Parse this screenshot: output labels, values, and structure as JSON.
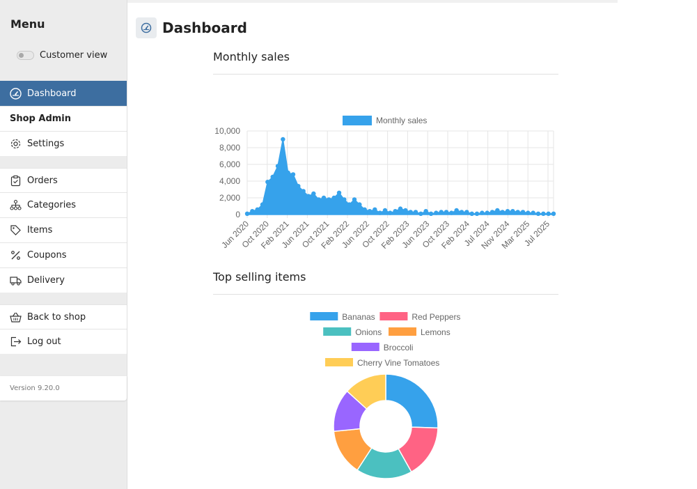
{
  "sidebar": {
    "menu_title": "Menu",
    "customer_view_label": "Customer view",
    "items": [
      {
        "label": "Dashboard",
        "icon": "dashboard-gauge-icon"
      },
      {
        "label": "Shop Admin"
      },
      {
        "label": "Settings",
        "icon": "gear-icon"
      },
      {
        "label": "Orders",
        "icon": "clipboard-check-icon"
      },
      {
        "label": "Categories",
        "icon": "hierarchy-icon"
      },
      {
        "label": "Items",
        "icon": "tag-icon"
      },
      {
        "label": "Coupons",
        "icon": "percent-icon"
      },
      {
        "label": "Delivery",
        "icon": "truck-icon"
      },
      {
        "label": "Back to shop",
        "icon": "basket-icon"
      },
      {
        "label": "Log out",
        "icon": "logout-icon"
      }
    ],
    "version": "Version 9.20.0"
  },
  "header": {
    "title": "Dashboard"
  },
  "monthly_sales": {
    "title": "Monthly sales"
  },
  "top_items": {
    "title": "Top selling items"
  },
  "chart_data": [
    {
      "type": "area",
      "legend": [
        "Monthly sales"
      ],
      "legend_position": "top",
      "grid": true,
      "color": "#36a2eb",
      "ylim": [
        0,
        10000
      ],
      "yticks": [
        "0",
        "2,000",
        "4,000",
        "6,000",
        "8,000",
        "10,000"
      ],
      "x_tick_labels": [
        "Jun 2020",
        "Oct 2020",
        "Feb 2021",
        "Jun 2021",
        "Oct 2021",
        "Feb 2022",
        "Jun 2022",
        "Oct 2022",
        "Feb 2023",
        "Jun 2023",
        "Oct 2023",
        "Feb 2024",
        "Jul 2024",
        "Nov 2024",
        "Mar 2025",
        "Jul 2025"
      ],
      "series": [
        {
          "values": [
            100,
            400,
            600,
            1200,
            3900,
            4500,
            5800,
            9000,
            5000,
            4800,
            3400,
            2800,
            2200,
            2500,
            1800,
            2000,
            1800,
            2000,
            2600,
            1800,
            1200,
            1800,
            1200,
            600,
            400,
            600,
            200,
            500,
            200,
            400,
            700,
            500,
            300,
            300,
            100,
            400,
            100,
            200,
            300,
            300,
            200,
            500,
            300,
            300,
            100,
            100,
            200,
            200,
            300,
            500,
            300,
            400,
            400,
            300,
            300,
            200,
            200,
            100,
            100,
            100,
            100
          ]
        }
      ]
    },
    {
      "type": "pie",
      "variant": "doughnut",
      "legend_position": "top",
      "categories": [
        "Bananas",
        "Red Peppers",
        "Onions",
        "Lemons",
        "Broccoli",
        "Cherry Vine Tomatoes"
      ],
      "values": [
        25,
        16,
        17,
        14,
        13,
        13
      ],
      "colors": [
        "#36a2eb",
        "#ff6384",
        "#4bc0c0",
        "#ff9f40",
        "#9966ff",
        "#ffcd56"
      ]
    }
  ]
}
